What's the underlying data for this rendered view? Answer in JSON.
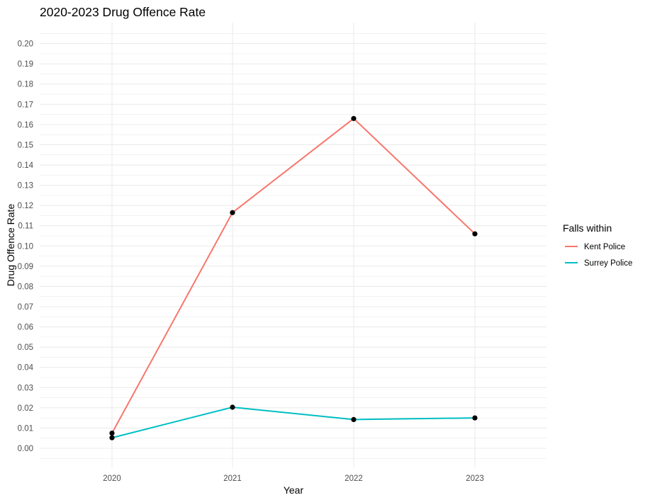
{
  "chart_data": {
    "type": "line",
    "title": "2020-2023 Drug Offence Rate",
    "xlabel": "Year",
    "ylabel": "Drug Offence Rate",
    "categories": [
      "2020",
      "2021",
      "2022",
      "2023"
    ],
    "ylim": [
      -0.01,
      0.21
    ],
    "yticks": [
      "0.00",
      "0.01",
      "0.02",
      "0.03",
      "0.04",
      "0.05",
      "0.06",
      "0.07",
      "0.08",
      "0.09",
      "0.10",
      "0.11",
      "0.12",
      "0.13",
      "0.14",
      "0.15",
      "0.16",
      "0.17",
      "0.18",
      "0.19",
      "0.20"
    ],
    "grid": true,
    "legend": {
      "title": "Falls within",
      "placement": "right"
    },
    "series": [
      {
        "name": "Kent Police",
        "color": "#F8766D",
        "values": [
          0.0075,
          0.1165,
          0.163,
          0.106
        ]
      },
      {
        "name": "Surrey Police",
        "color": "#00BFC4",
        "values": [
          0.0052,
          0.0203,
          0.0142,
          0.015
        ]
      }
    ],
    "point_color": "#000000",
    "grid_color": "#ebebeb"
  }
}
